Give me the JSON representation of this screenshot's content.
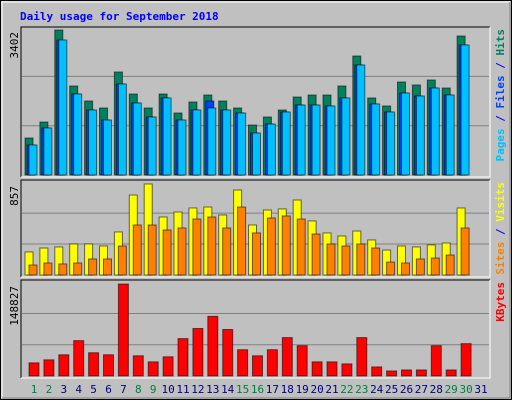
{
  "title": "Daily usage for September 2018",
  "categories": [
    "1",
    "2",
    "3",
    "4",
    "5",
    "6",
    "7",
    "8",
    "9",
    "10",
    "11",
    "12",
    "13",
    "14",
    "15",
    "16",
    "17",
    "18",
    "19",
    "20",
    "21",
    "22",
    "23",
    "24",
    "25",
    "26",
    "27",
    "28",
    "29",
    "30",
    "31"
  ],
  "category_colors": [
    "#008040",
    "#008040",
    "#000080",
    "#000080",
    "#000080",
    "#000080",
    "#000080",
    "#008040",
    "#008040",
    "#000080",
    "#000080",
    "#000080",
    "#000080",
    "#000080",
    "#008040",
    "#008040",
    "#000080",
    "#000080",
    "#000080",
    "#000080",
    "#000080",
    "#008040",
    "#008040",
    "#000080",
    "#000080",
    "#000080",
    "#000080",
    "#000080",
    "#008040",
    "#008040",
    "#000080"
  ],
  "legend_separator": " / ",
  "chart_data": [
    {
      "type": "bar",
      "ylim": [
        0,
        3402
      ],
      "yticks": [
        3402
      ],
      "series": [
        {
          "name": "Hits",
          "color": "#00805c",
          "values": [
            868,
            1243,
            3402,
            2088,
            1736,
            1572,
            2417,
            1900,
            1572,
            1900,
            1455,
            1713,
            1877,
            1736,
            1572,
            1173,
            1361,
            1525,
            1830,
            1877,
            1877,
            2088,
            2792,
            1807,
            1619,
            2182,
            2112,
            2229,
            2041,
            3261,
            0
          ]
        },
        {
          "name": "Files",
          "color": "#0040ff",
          "values": [
            704,
            1103,
            3167,
            1900,
            1525,
            1290,
            2135,
            1689,
            1361,
            1807,
            1290,
            1525,
            1736,
            1525,
            1455,
            985,
            1196,
            1478,
            1642,
            1642,
            1619,
            1807,
            2581,
            1666,
            1478,
            1924,
            1853,
            2041,
            1877,
            3050,
            0
          ]
        },
        {
          "name": "Pages",
          "color": "#00c0ff",
          "values": [
            704,
            1103,
            3167,
            1900,
            1525,
            1290,
            2135,
            1689,
            1361,
            1807,
            1290,
            1525,
            1572,
            1525,
            1455,
            985,
            1196,
            1478,
            1642,
            1642,
            1619,
            1807,
            2581,
            1666,
            1478,
            1924,
            1853,
            2041,
            1877,
            3050,
            0
          ]
        }
      ]
    },
    {
      "type": "bar",
      "ylim": [
        0,
        857
      ],
      "yticks": [
        857
      ],
      "series": [
        {
          "name": "Visits",
          "color": "#ffff00",
          "values": [
            217,
            254,
            264,
            292,
            292,
            273,
            405,
            753,
            857,
            546,
            593,
            631,
            640,
            565,
            800,
            471,
            612,
            622,
            706,
            509,
            396,
            367,
            414,
            330,
            235,
            273,
            264,
            283,
            301,
            631,
            0
          ]
        },
        {
          "name": "Sites",
          "color": "#ff8000",
          "values": [
            94,
            113,
            104,
            113,
            151,
            151,
            273,
            471,
            471,
            424,
            443,
            527,
            546,
            443,
            640,
            396,
            537,
            556,
            527,
            386,
            292,
            273,
            292,
            254,
            122,
            113,
            151,
            160,
            188,
            443,
            0
          ]
        }
      ]
    },
    {
      "type": "bar",
      "ylim": [
        0,
        148827
      ],
      "yticks": [
        148827
      ],
      "series": [
        {
          "name": "KBytes",
          "color": "#ff0000",
          "values": [
            21261,
            26167,
            34344,
            57241,
            37615,
            34344,
            148827,
            32709,
            22896,
            31073,
            60512,
            76866,
            96491,
            75231,
            42522,
            32709,
            42522,
            62147,
            49064,
            22896,
            22896,
            19625,
            62147,
            14719,
            8177,
            9813,
            9813,
            49064,
            9813,
            52335,
            0
          ]
        }
      ]
    }
  ]
}
